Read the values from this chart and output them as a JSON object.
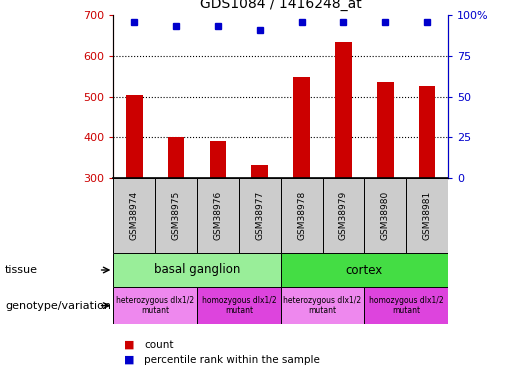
{
  "title": "GDS1084 / 1416248_at",
  "samples": [
    "GSM38974",
    "GSM38975",
    "GSM38976",
    "GSM38977",
    "GSM38978",
    "GSM38979",
    "GSM38980",
    "GSM38981"
  ],
  "counts": [
    503,
    400,
    391,
    333,
    549,
    634,
    535,
    526
  ],
  "percentiles": [
    96,
    93,
    93,
    91,
    96,
    96,
    96,
    96
  ],
  "ylim_left": [
    300,
    700
  ],
  "ylim_right": [
    0,
    100
  ],
  "yticks_left": [
    300,
    400,
    500,
    600,
    700
  ],
  "yticks_right": [
    0,
    25,
    50,
    75,
    100
  ],
  "bar_color": "#cc0000",
  "dot_color": "#0000cc",
  "tissue_labels": [
    {
      "label": "basal ganglion",
      "start": 0,
      "end": 3,
      "color": "#99ee99"
    },
    {
      "label": "cortex",
      "start": 4,
      "end": 7,
      "color": "#44dd44"
    }
  ],
  "genotype_labels": [
    {
      "label": "heterozygous dlx1/2\nmutant",
      "start": 0,
      "end": 1,
      "color": "#ee88ee"
    },
    {
      "label": "homozygous dlx1/2\nmutant",
      "start": 2,
      "end": 3,
      "color": "#dd44dd"
    },
    {
      "label": "heterozygous dlx1/2\nmutant",
      "start": 4,
      "end": 5,
      "color": "#ee88ee"
    },
    {
      "label": "homozygous dlx1/2\nmutant",
      "start": 6,
      "end": 7,
      "color": "#dd44dd"
    }
  ],
  "left_label_color": "#cc0000",
  "right_label_color": "#0000cc",
  "grid_color": "#000000",
  "sample_box_color": "#cccccc",
  "annotation_tissue": "tissue",
  "annotation_genotype": "genotype/variation",
  "legend_count": "count",
  "legend_percentile": "percentile rank within the sample",
  "bar_width": 0.4,
  "figsize": [
    5.15,
    3.75
  ],
  "dpi": 100
}
